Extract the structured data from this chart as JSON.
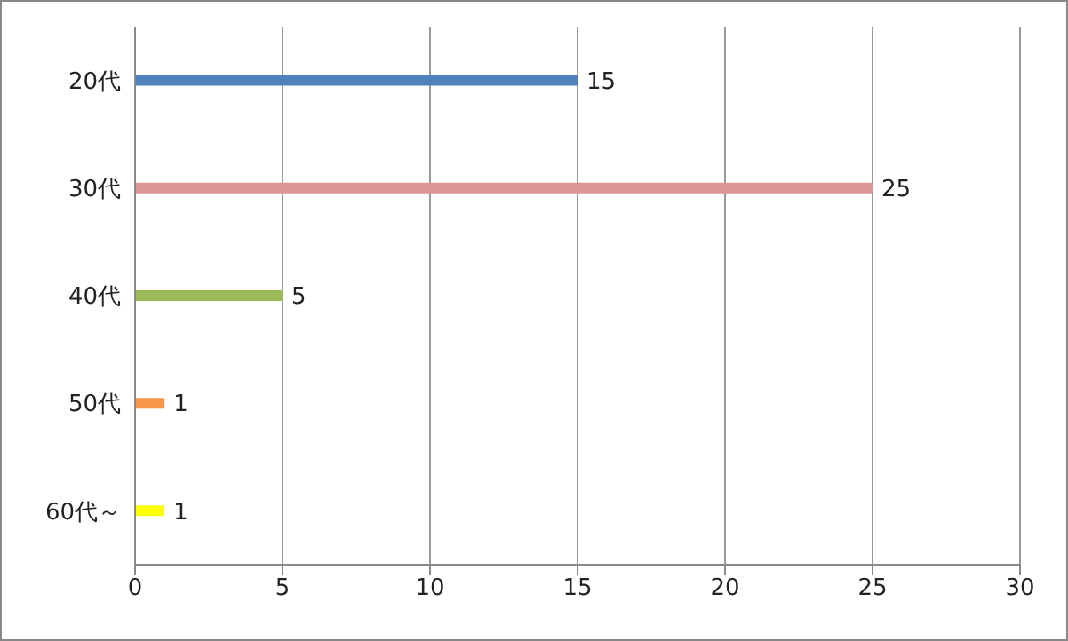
{
  "chart_data": {
    "type": "bar",
    "orientation": "horizontal",
    "categories": [
      "20代",
      "30代",
      "40代",
      "50代",
      "60代～"
    ],
    "values": [
      15,
      25,
      5,
      1,
      1
    ],
    "colors": [
      "#4f81bd",
      "#da9694",
      "#9bbb59",
      "#f79646",
      "#ffff00"
    ],
    "xlim": [
      0,
      30
    ],
    "xticks": [
      0,
      5,
      10,
      15,
      20,
      25,
      30
    ],
    "grid": "x",
    "data_labels": true
  }
}
